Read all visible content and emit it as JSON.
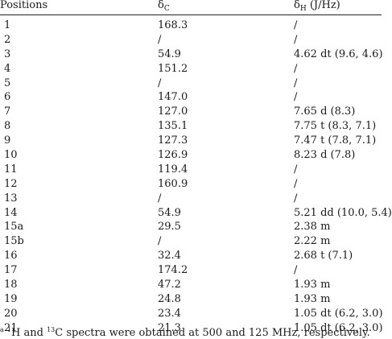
{
  "header": {
    "positions": "Positions",
    "delta_c_symbol": "δ",
    "delta_c_sub": "C",
    "delta_h_symbol": "δ",
    "delta_h_sub": "H",
    "delta_h_unit": " (J/Hz)"
  },
  "rows": [
    {
      "pos": "1",
      "dc": "168.3",
      "dh": "/"
    },
    {
      "pos": "2",
      "dc": "/",
      "dh": "/"
    },
    {
      "pos": "3",
      "dc": "54.9",
      "dh": "4.62 dt (9.6, 4.6)"
    },
    {
      "pos": "4",
      "dc": "151.2",
      "dh": "/"
    },
    {
      "pos": "5",
      "dc": "/",
      "dh": "/"
    },
    {
      "pos": "6",
      "dc": "147.0",
      "dh": "/"
    },
    {
      "pos": "7",
      "dc": "127.0",
      "dh": "7.65 d (8.3)"
    },
    {
      "pos": "8",
      "dc": "135.1",
      "dh": "7.75 t (8.3, 7.1)"
    },
    {
      "pos": "9",
      "dc": "127.3",
      "dh": "7.47 t (7.8, 7.1)"
    },
    {
      "pos": "10",
      "dc": "126.9",
      "dh": "8.23 d (7.8)"
    },
    {
      "pos": "11",
      "dc": "119.4",
      "dh": "/"
    },
    {
      "pos": "12",
      "dc": "160.9",
      "dh": "/"
    },
    {
      "pos": "13",
      "dc": "/",
      "dh": "/"
    },
    {
      "pos": "14",
      "dc": "54.9",
      "dh": "5.21 dd (10.0, 5.4)"
    },
    {
      "pos": "15a",
      "dc": "29.5",
      "dh": "2.38 m"
    },
    {
      "pos": "15b",
      "dc": "/",
      "dh": "2.22 m"
    },
    {
      "pos": "16",
      "dc": "32.4",
      "dh": "2.68 t (7.1)"
    },
    {
      "pos": "17",
      "dc": "174.2",
      "dh": "/"
    },
    {
      "pos": "18",
      "dc": "47.2",
      "dh": "1.93 m"
    },
    {
      "pos": "19",
      "dc": "24.8",
      "dh": "1.93 m"
    },
    {
      "pos": "20",
      "dc": "23.4",
      "dh": "1.05 dt (6.2, 3.0)"
    },
    {
      "pos": "21",
      "dc": "21.3",
      "dh": "1.05 dt (6.2, 3.0)"
    }
  ],
  "footnote": {
    "mark": "a",
    "h_sup": "1",
    "h_text": "H and ",
    "c_sup": "13",
    "c_text": "C spectra were obtained at 500 and 125 MHz, respectively."
  }
}
